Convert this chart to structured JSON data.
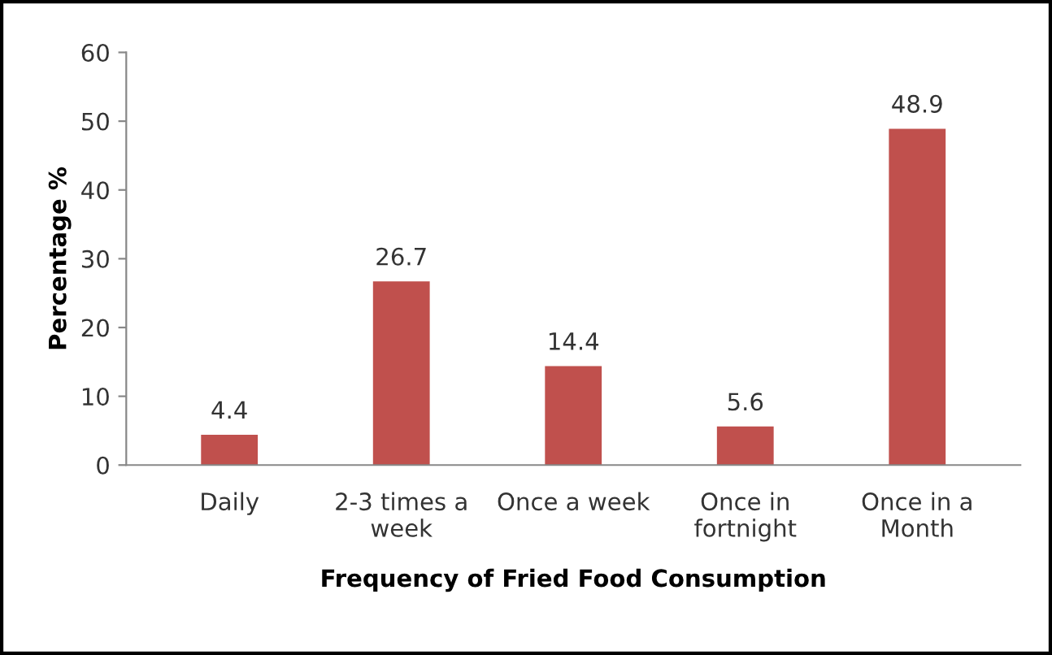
{
  "chart_data": {
    "type": "bar",
    "categories": [
      "Daily",
      "2-3 times a\nweek",
      "Once a week",
      "Once in\nfortnight",
      "Once in a\nMonth"
    ],
    "values": [
      4.4,
      26.7,
      14.4,
      5.6,
      48.9
    ],
    "color": "#c0504d",
    "xlabel": "Frequency of Fried Food Consumption",
    "ylabel": "Percentage %",
    "ylim": [
      0,
      60
    ],
    "yticks": [
      0,
      10,
      20,
      30,
      40,
      50,
      60
    ],
    "data_labels": true,
    "grid": false
  }
}
